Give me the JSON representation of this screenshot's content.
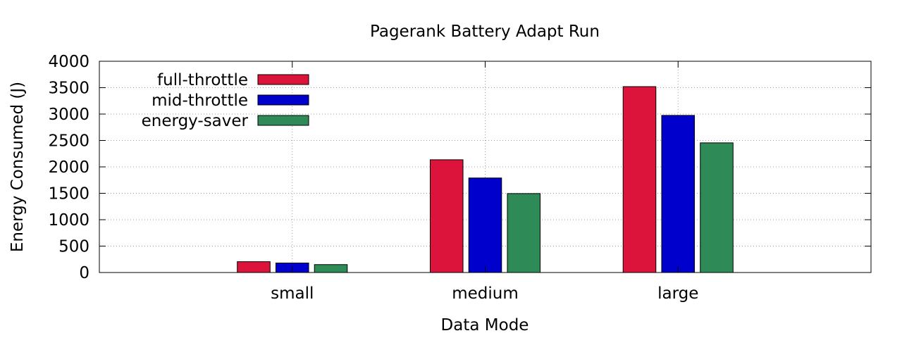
{
  "chart_data": {
    "type": "bar",
    "title": "Pagerank Battery Adapt Run",
    "xlabel": "Data Mode",
    "ylabel": "Energy Consumed (J)",
    "categories": [
      "small",
      "medium",
      "large"
    ],
    "ylim": [
      0,
      4000
    ],
    "yticks": [
      0,
      500,
      1000,
      1500,
      2000,
      2500,
      3000,
      3500,
      4000
    ],
    "grid": true,
    "legend_position": "top-left",
    "series": [
      {
        "name": "full-throttle",
        "color": "#dc143c",
        "values": [
          205,
          2135,
          3520
        ]
      },
      {
        "name": "mid-throttle",
        "color": "#0000cd",
        "values": [
          180,
          1790,
          2975
        ]
      },
      {
        "name": "energy-saver",
        "color": "#2e8b57",
        "values": [
          150,
          1495,
          2455
        ]
      }
    ]
  }
}
